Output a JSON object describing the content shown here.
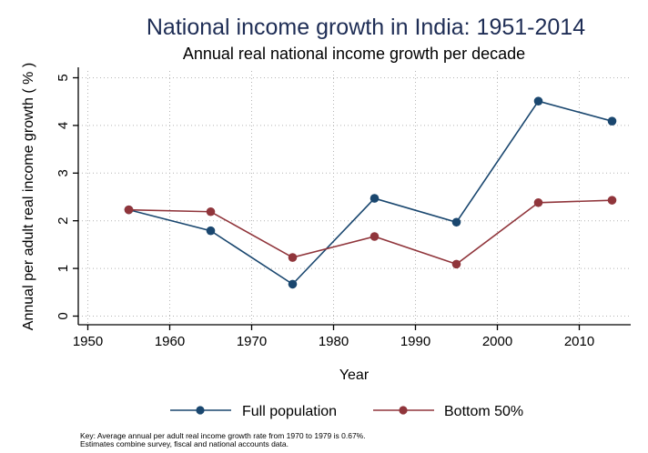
{
  "chart_data": {
    "type": "line",
    "title": "National income growth in India: 1951-2014",
    "subtitle": "Annual real national income growth per decade",
    "xlabel": "Year",
    "ylabel": "Annual per adult real income growth ( % )",
    "xlim": [
      1948.8,
      2016.5
    ],
    "ylim": [
      -0.2,
      5.2
    ],
    "xticks": [
      1950,
      1960,
      1970,
      1980,
      1990,
      2000,
      2010
    ],
    "yticks": [
      0,
      1,
      2,
      3,
      4,
      5
    ],
    "grid": true,
    "x": [
      1955,
      1965,
      1975,
      1985,
      1995,
      2005,
      2014
    ],
    "series": [
      {
        "name": "Full population",
        "color": "#1a476f",
        "values": [
          2.23,
          1.79,
          0.67,
          2.47,
          1.97,
          4.51,
          4.09
        ]
      },
      {
        "name": "Bottom 50%",
        "color": "#90353b",
        "values": [
          2.23,
          2.19,
          1.23,
          1.67,
          1.09,
          2.38,
          2.43
        ]
      }
    ],
    "legend_position": "bottom",
    "notes": [
      "Key: Average annual per adult real income growth rate from 1970 to 1979 is 0.67%.",
      "Estimates combine survey, fiscal and national accounts data."
    ]
  }
}
